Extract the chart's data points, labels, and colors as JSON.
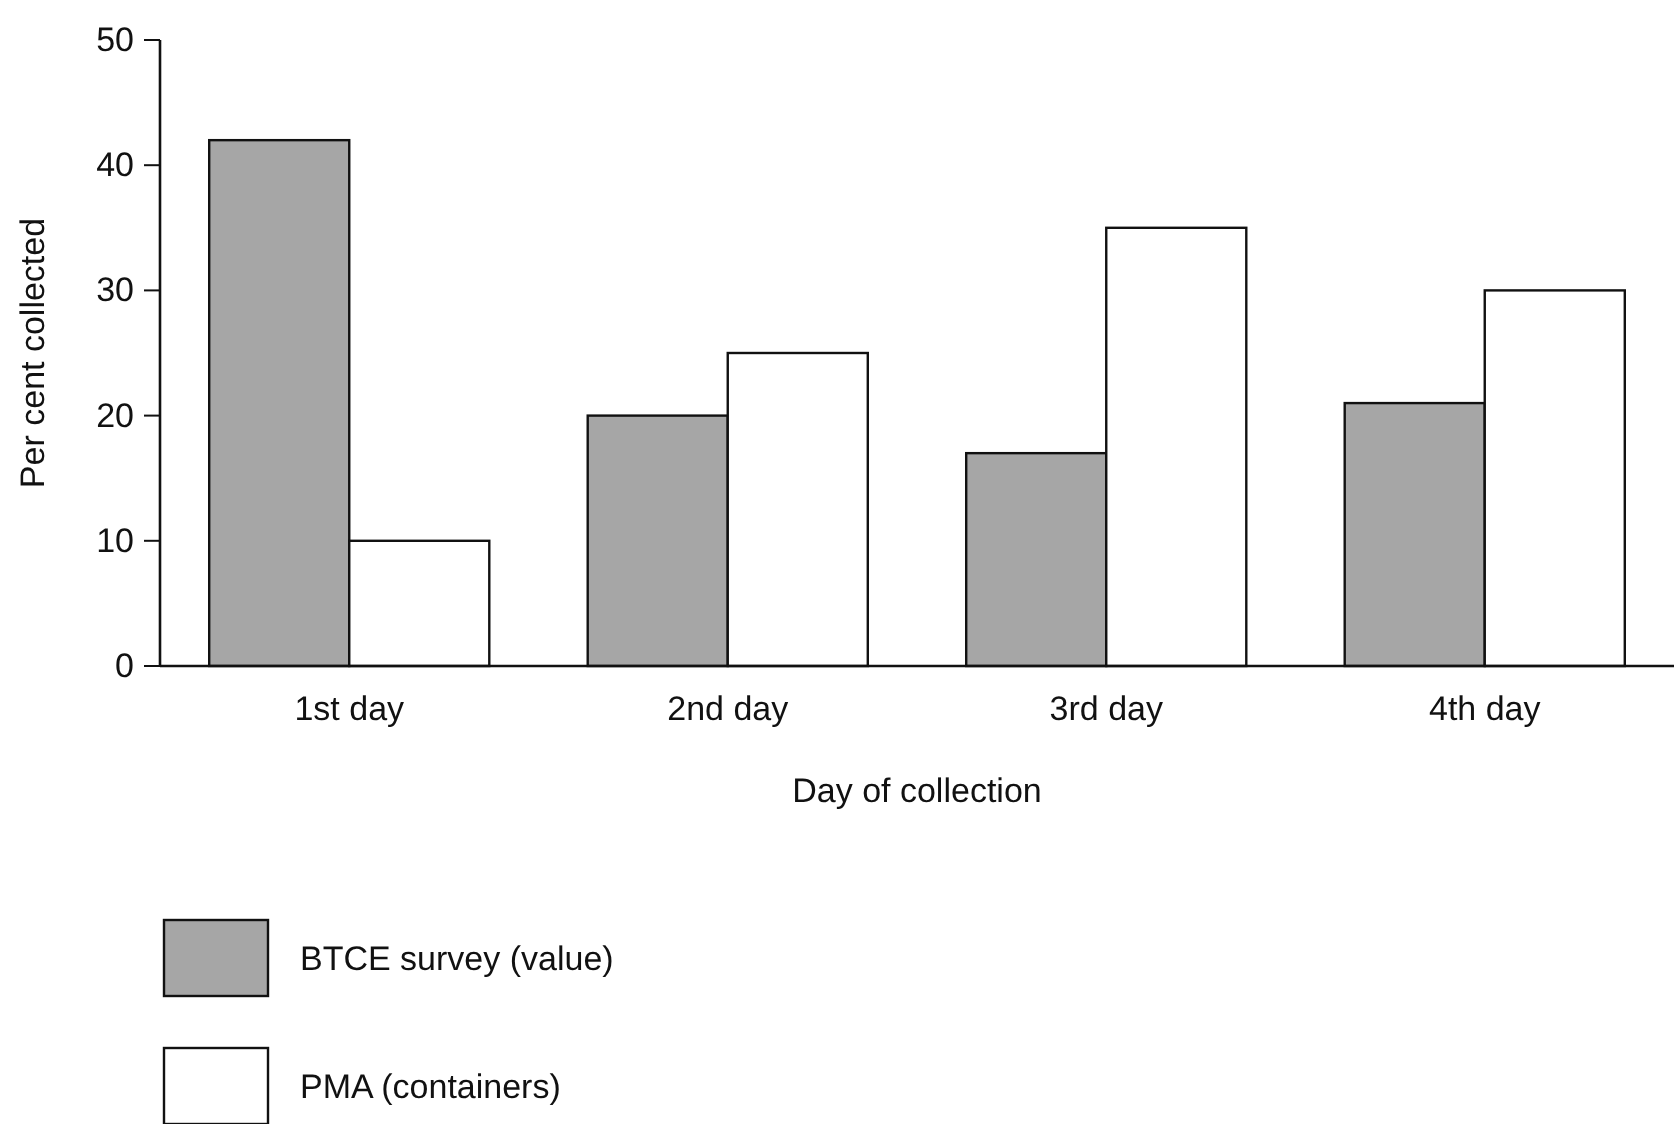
{
  "chart_data": {
    "type": "bar",
    "xlabel": "Day of collection",
    "ylabel": "Per cent collected",
    "categories": [
      "1st day",
      "2nd day",
      "3rd day",
      "4th day"
    ],
    "series": [
      {
        "name": "BTCE survey (value)",
        "color": "#a6a6a6",
        "values": [
          42,
          20,
          17,
          21
        ]
      },
      {
        "name": "PMA (containers)",
        "color": "#ffffff",
        "values": [
          10,
          25,
          35,
          30
        ]
      }
    ],
    "ylim": [
      0,
      50
    ],
    "yticks": [
      0,
      10,
      20,
      30,
      40,
      50
    ],
    "grid": false,
    "legend": "bottom left"
  }
}
